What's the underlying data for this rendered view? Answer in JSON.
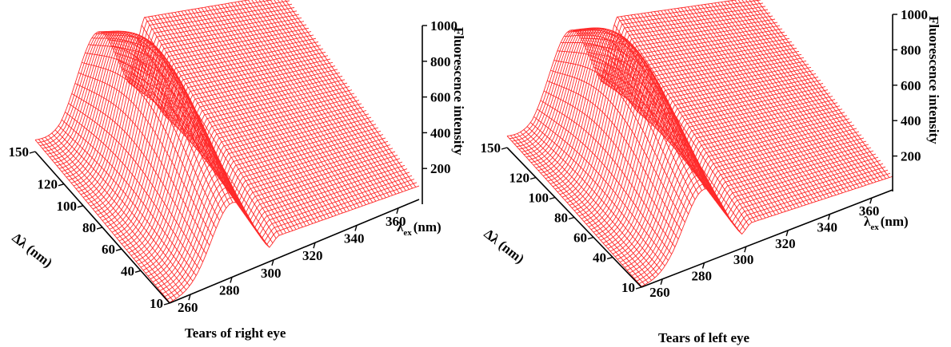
{
  "chart_data": [
    {
      "type": "surface3d",
      "caption": "Tears of right eye",
      "x_axis": {
        "label": "λex (nm)",
        "label_main": "λ",
        "label_sub": "ex",
        "label_unit": "(nm)",
        "ticks": [
          260,
          280,
          300,
          320,
          340,
          360
        ]
      },
      "y_axis": {
        "label": "Δλ (nm)",
        "ticks": [
          10,
          40,
          60,
          80,
          100,
          120,
          150
        ]
      },
      "z_axis": {
        "label": "Fluorescence intensity",
        "ticks": [
          200,
          400,
          600,
          800,
          1000
        ],
        "range": [
          0,
          1000
        ]
      },
      "surface_color": "#ff2a2a",
      "peak": {
        "lambda_ex": 280,
        "delta_lambda": 90,
        "intensity": 880
      }
    },
    {
      "type": "surface3d",
      "caption": "Tears of left eye",
      "x_axis": {
        "label": "λex (nm)",
        "label_main": "λ",
        "label_sub": "ex",
        "label_unit": "(nm)",
        "ticks": [
          260,
          280,
          300,
          320,
          340,
          360
        ]
      },
      "y_axis": {
        "label": "Δλ (nm)",
        "ticks": [
          10,
          40,
          60,
          80,
          100,
          120,
          150
        ]
      },
      "z_axis": {
        "label": "Fluorescence intensity",
        "ticks": [
          200,
          400,
          600,
          800,
          1000
        ],
        "range": [
          0,
          1000
        ]
      },
      "surface_color": "#ff2a2a",
      "peak": {
        "lambda_ex": 280,
        "delta_lambda": 90,
        "intensity": 880
      }
    }
  ]
}
